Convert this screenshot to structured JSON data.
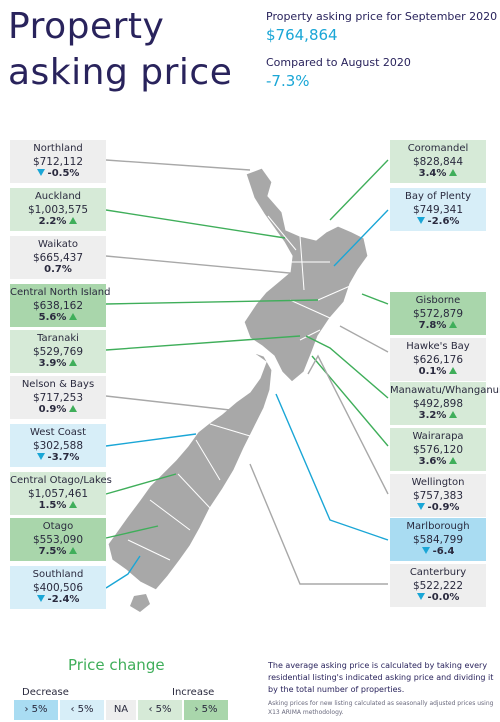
{
  "header": {
    "title_line1": "Property",
    "title_line2": "asking price",
    "asking_label": "Property asking price for September 2020",
    "asking_value": "$764,864",
    "compare_label": "Compared to August 2020",
    "compare_value": "-7.3%"
  },
  "regions_left": [
    {
      "name": "Northland",
      "price": "$712,112",
      "change": "-0.5%",
      "dir": "down",
      "shade": "neutral"
    },
    {
      "name": "Auckland",
      "price": "$1,003,575",
      "change": "2.2%",
      "dir": "up",
      "shade": "inc"
    },
    {
      "name": "Waikato",
      "price": "$665,437",
      "change": "0.7%",
      "dir": "none",
      "shade": "neutral"
    },
    {
      "name": "Central North Island",
      "price": "$638,162",
      "change": "5.6%",
      "dir": "up",
      "shade": "inc-strong"
    },
    {
      "name": "Taranaki",
      "price": "$529,769",
      "change": "3.9%",
      "dir": "up",
      "shade": "inc"
    },
    {
      "name": "Nelson & Bays",
      "price": "$717,253",
      "change": "0.9%",
      "dir": "up",
      "shade": "neutral"
    },
    {
      "name": "West Coast",
      "price": "$302,588",
      "change": "-3.7%",
      "dir": "down",
      "shade": "dec"
    },
    {
      "name": "Central Otago/Lakes",
      "price": "$1,057,461",
      "change": "1.5%",
      "dir": "up",
      "shade": "inc"
    },
    {
      "name": "Otago",
      "price": "$553,090",
      "change": "7.5%",
      "dir": "up",
      "shade": "inc-strong"
    },
    {
      "name": "Southland",
      "price": "$400,506",
      "change": "-2.4%",
      "dir": "down",
      "shade": "dec"
    }
  ],
  "regions_right": [
    {
      "name": "Coromandel",
      "price": "$828,844",
      "change": "3.4%",
      "dir": "up",
      "shade": "inc"
    },
    {
      "name": "Bay of Plenty",
      "price": "$749,341",
      "change": "-2.6%",
      "dir": "down",
      "shade": "dec"
    },
    {
      "name": "Gisborne",
      "price": "$572,879",
      "change": "7.8%",
      "dir": "up",
      "shade": "inc-strong"
    },
    {
      "name": "Hawke's Bay",
      "price": "$626,176",
      "change": "0.1%",
      "dir": "up",
      "shade": "neutral"
    },
    {
      "name": "Manawatu/Whanganui",
      "price": "$492,898",
      "change": "3.2%",
      "dir": "up",
      "shade": "inc"
    },
    {
      "name": "Wairarapa",
      "price": "$576,120",
      "change": "3.6%",
      "dir": "up",
      "shade": "inc"
    },
    {
      "name": "Wellington",
      "price": "$757,383",
      "change": "-0.9%",
      "dir": "down",
      "shade": "neutral"
    },
    {
      "name": "Marlborough",
      "price": "$584,799",
      "change": "-6.4",
      "dir": "down",
      "shade": "dec-strong"
    },
    {
      "name": "Canterbury",
      "price": "$522,222",
      "change": "-0.0%",
      "dir": "down",
      "shade": "neutral"
    }
  ],
  "legend": {
    "title": "Price change",
    "decrease_label": "Decrease",
    "increase_label": "Increase",
    "bins": [
      "› 5%",
      "‹ 5%",
      "NA",
      "‹ 5%",
      "› 5%"
    ]
  },
  "notes": {
    "main": "The average asking price is calculated by taking every residential listing's indicated asking price and dividing it by the total number of properties.",
    "small": "Asking prices for new listing calculated as seasonally adjusted prices using X13 ARIMA methodology."
  },
  "colors": {
    "title": "#29235c",
    "accent_blue": "#1aa6d6",
    "accent_green": "#3fae5a",
    "map_grey": "#a8a8a8"
  }
}
